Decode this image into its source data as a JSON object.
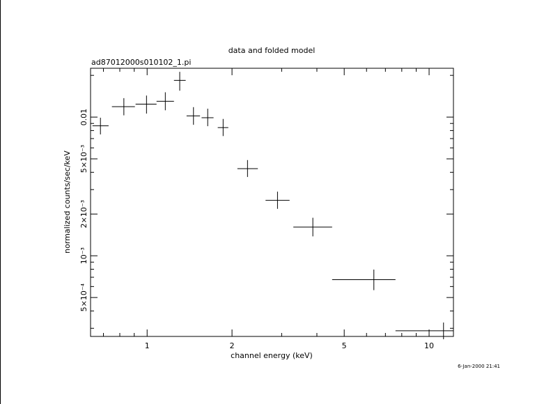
{
  "chart_data": {
    "type": "scatter",
    "title": "data and folded model",
    "subtitle": "ad87012000s010102_1.pi",
    "xlabel": "channel energy (keV)",
    "ylabel": "normalized counts/sec/keV",
    "timestamp": "6-Jan-2000 21:41",
    "x_scale": "log",
    "y_scale": "log",
    "xlim": [
      0.63,
      12.2
    ],
    "ylim": [
      0.000262,
      0.0225
    ],
    "x_tick_labels": [
      {
        "value": 1,
        "label": "1"
      },
      {
        "value": 2,
        "label": "2"
      },
      {
        "value": 5,
        "label": "5"
      },
      {
        "value": 10,
        "label": "10"
      }
    ],
    "x_minor_ticks": [
      0.7,
      0.8,
      0.9,
      3,
      4,
      6,
      7,
      8,
      9
    ],
    "y_tick_labels": [
      {
        "value": 0.01,
        "label": "0.01"
      },
      {
        "value": 0.005,
        "label": "5×10⁻³"
      },
      {
        "value": 0.002,
        "label": "2×10⁻³"
      },
      {
        "value": 0.001,
        "label": "10⁻³"
      },
      {
        "value": 0.0005,
        "label": "5×10⁻⁴"
      }
    ],
    "y_minor_ticks": [
      0.0003,
      0.0004,
      0.0006,
      0.0007,
      0.0008,
      0.0009,
      0.003,
      0.004,
      0.006,
      0.007,
      0.008,
      0.009,
      0.02
    ],
    "points": [
      {
        "x": 0.683,
        "xlo": 0.64,
        "xhi": 0.73,
        "y": 0.00865,
        "ylo": 0.0075,
        "yhi": 0.0099
      },
      {
        "x": 0.827,
        "xlo": 0.75,
        "xhi": 0.905,
        "y": 0.0119,
        "ylo": 0.0103,
        "yhi": 0.0137
      },
      {
        "x": 0.995,
        "xlo": 0.91,
        "xhi": 1.08,
        "y": 0.0124,
        "ylo": 0.0106,
        "yhi": 0.0143
      },
      {
        "x": 1.16,
        "xlo": 1.08,
        "xhi": 1.245,
        "y": 0.013,
        "ylo": 0.0112,
        "yhi": 0.0151
      },
      {
        "x": 1.305,
        "xlo": 1.245,
        "xhi": 1.37,
        "y": 0.0184,
        "ylo": 0.0155,
        "yhi": 0.0212
      },
      {
        "x": 1.46,
        "xlo": 1.38,
        "xhi": 1.54,
        "y": 0.0102,
        "ylo": 0.0088,
        "yhi": 0.0118
      },
      {
        "x": 1.64,
        "xlo": 1.56,
        "xhi": 1.72,
        "y": 0.0099,
        "ylo": 0.0086,
        "yhi": 0.0115
      },
      {
        "x": 1.86,
        "xlo": 1.78,
        "xhi": 1.94,
        "y": 0.0084,
        "ylo": 0.0073,
        "yhi": 0.0097
      },
      {
        "x": 2.27,
        "xlo": 2.09,
        "xhi": 2.47,
        "y": 0.00425,
        "ylo": 0.0037,
        "yhi": 0.0049
      },
      {
        "x": 2.9,
        "xlo": 2.63,
        "xhi": 3.2,
        "y": 0.00251,
        "ylo": 0.00218,
        "yhi": 0.0029
      },
      {
        "x": 3.87,
        "xlo": 3.3,
        "xhi": 4.53,
        "y": 0.00161,
        "ylo": 0.00138,
        "yhi": 0.00188
      },
      {
        "x": 6.37,
        "xlo": 4.53,
        "xhi": 7.6,
        "y": 0.000672,
        "ylo": 0.000565,
        "yhi": 0.000795
      },
      {
        "x": 11.25,
        "xlo": 7.6,
        "xhi": 12.2,
        "y": 0.000288,
        "ylo": 0.00025,
        "yhi": 0.00033
      }
    ]
  }
}
